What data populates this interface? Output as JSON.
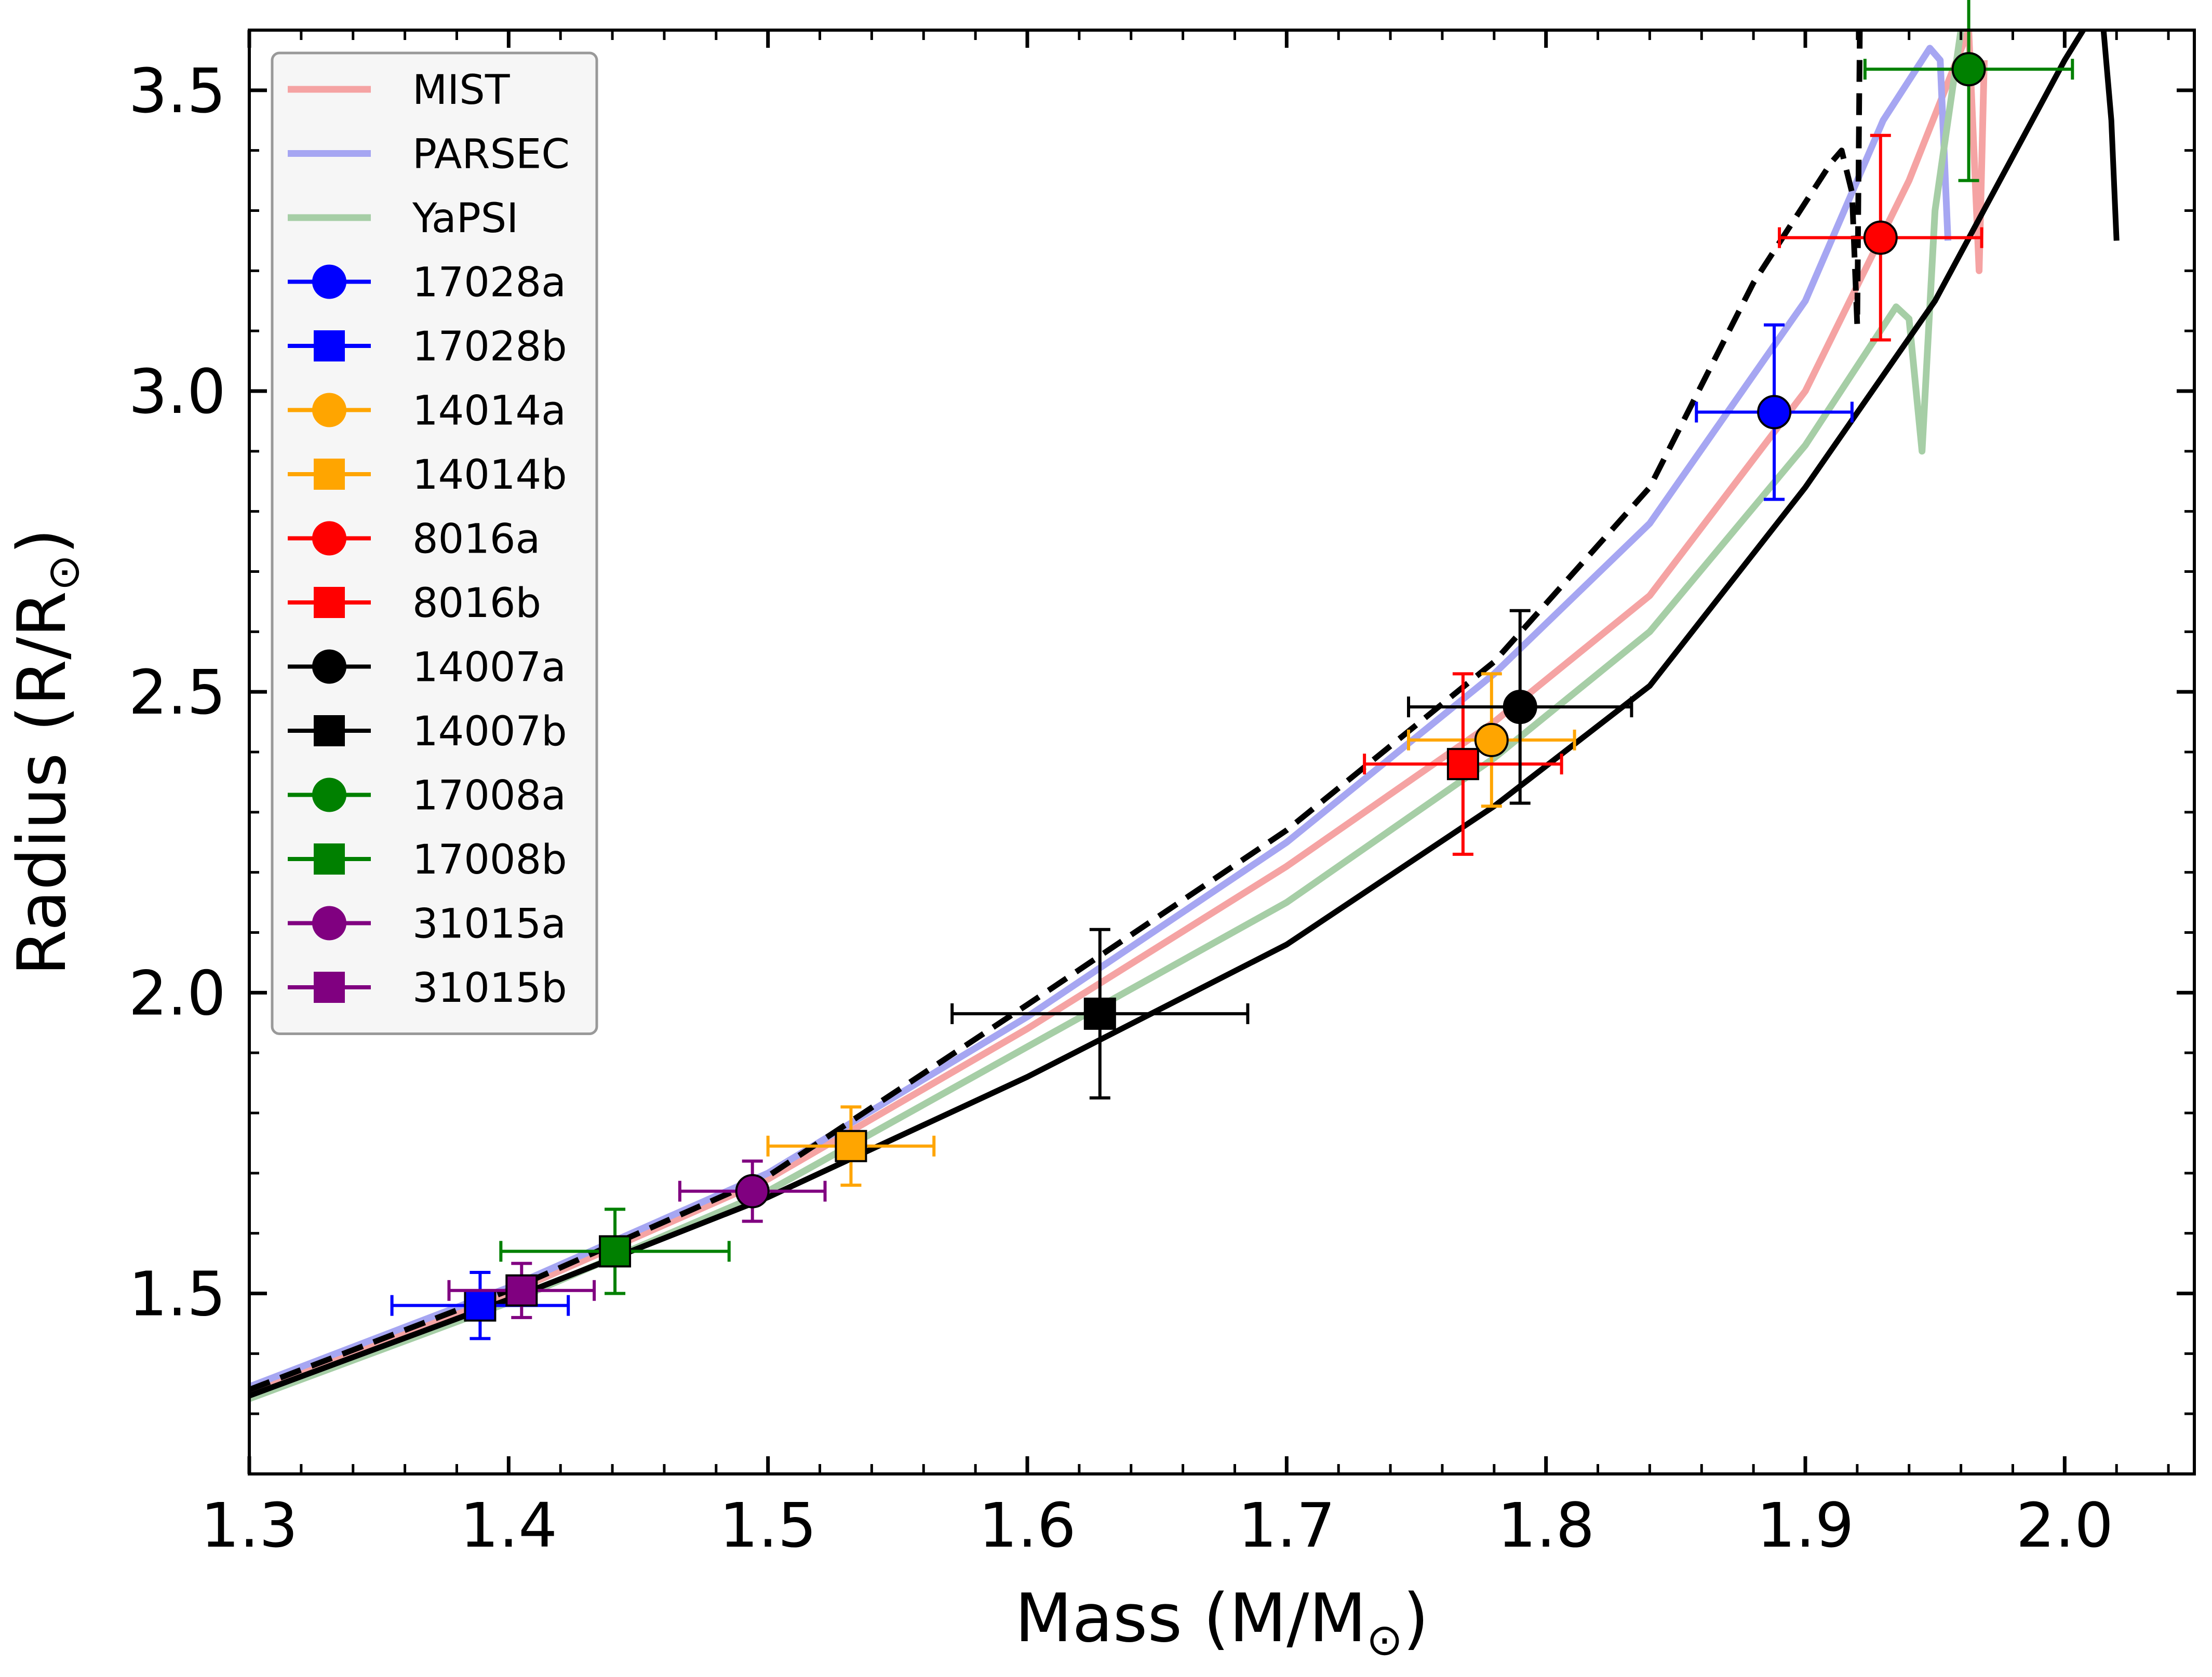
{
  "chart_data": {
    "type": "scatter",
    "title": "",
    "xlabel": "Mass (M/M",
    "ylabel": "Radius (R/R",
    "sun_symbol": "⊙",
    "xlim": [
      1.3,
      2.05
    ],
    "ylim": [
      1.2,
      3.6
    ],
    "x_ticks": [
      1.3,
      1.4,
      1.5,
      1.6,
      1.7,
      1.8,
      1.9,
      2.0
    ],
    "x_tick_labels": [
      "1.3",
      "1.4",
      "1.5",
      "1.6",
      "1.7",
      "1.8",
      "1.9",
      "2.0"
    ],
    "y_ticks": [
      1.5,
      2.0,
      2.5,
      3.0,
      3.5
    ],
    "y_tick_labels": [
      "1.5",
      "2.0",
      "2.5",
      "3.0",
      "3.5"
    ],
    "legend_position": "upper-left",
    "grid": false,
    "models": [
      {
        "name": "MIST",
        "color": "#f5a3a3",
        "points": [
          [
            1.3,
            1.34
          ],
          [
            1.4,
            1.5
          ],
          [
            1.5,
            1.69
          ],
          [
            1.6,
            1.94
          ],
          [
            1.7,
            2.21
          ],
          [
            1.78,
            2.45
          ],
          [
            1.84,
            2.66
          ],
          [
            1.9,
            3.0
          ],
          [
            1.94,
            3.35
          ],
          [
            1.963,
            3.6
          ],
          [
            1.965,
            3.4
          ],
          [
            1.967,
            3.2
          ],
          [
            1.969,
            3.55
          ]
        ]
      },
      {
        "name": "PARSEC",
        "color": "#a6a6f2",
        "points": [
          [
            1.3,
            1.345
          ],
          [
            1.4,
            1.51
          ],
          [
            1.5,
            1.7
          ],
          [
            1.6,
            1.96
          ],
          [
            1.7,
            2.25
          ],
          [
            1.78,
            2.53
          ],
          [
            1.84,
            2.78
          ],
          [
            1.9,
            3.15
          ],
          [
            1.93,
            3.45
          ],
          [
            1.948,
            3.57
          ],
          [
            1.952,
            3.55
          ],
          [
            1.955,
            3.25
          ]
        ]
      },
      {
        "name": "YaPSI",
        "color": "#a6cea6",
        "points": [
          [
            1.3,
            1.325
          ],
          [
            1.4,
            1.485
          ],
          [
            1.5,
            1.67
          ],
          [
            1.6,
            1.91
          ],
          [
            1.7,
            2.15
          ],
          [
            1.78,
            2.39
          ],
          [
            1.84,
            2.6
          ],
          [
            1.9,
            2.91
          ],
          [
            1.935,
            3.14
          ],
          [
            1.94,
            3.12
          ],
          [
            1.945,
            2.9
          ],
          [
            1.95,
            3.3
          ],
          [
            1.96,
            3.6
          ]
        ]
      }
    ],
    "black_curves": [
      {
        "name": "solid",
        "style": "solid",
        "color": "#000000",
        "points": [
          [
            1.3,
            1.33
          ],
          [
            1.4,
            1.49
          ],
          [
            1.5,
            1.66
          ],
          [
            1.6,
            1.86
          ],
          [
            1.7,
            2.08
          ],
          [
            1.78,
            2.31
          ],
          [
            1.84,
            2.51
          ],
          [
            1.9,
            2.84
          ],
          [
            1.95,
            3.15
          ],
          [
            2.0,
            3.55
          ],
          [
            2.01,
            3.62
          ],
          [
            2.015,
            3.6
          ],
          [
            2.018,
            3.45
          ],
          [
            2.02,
            3.25
          ]
        ]
      },
      {
        "name": "dashed",
        "style": "dashed",
        "color": "#000000",
        "points": [
          [
            1.3,
            1.34
          ],
          [
            1.4,
            1.505
          ],
          [
            1.5,
            1.695
          ],
          [
            1.6,
            1.98
          ],
          [
            1.7,
            2.27
          ],
          [
            1.78,
            2.55
          ],
          [
            1.84,
            2.84
          ],
          [
            1.88,
            3.18
          ],
          [
            1.91,
            3.38
          ],
          [
            1.914,
            3.4
          ],
          [
            1.918,
            3.33
          ],
          [
            1.92,
            3.11
          ],
          [
            1.921,
            3.6
          ]
        ]
      }
    ],
    "series": [
      {
        "name": "17028a",
        "marker": "circle",
        "color": "#0000ff",
        "x": 1.888,
        "y": 2.965,
        "xerr": 0.03,
        "yerr": 0.145
      },
      {
        "name": "17028b",
        "marker": "square",
        "color": "#0000ff",
        "x": 1.389,
        "y": 1.48,
        "xerr": 0.034,
        "yerr": 0.055
      },
      {
        "name": "14014a",
        "marker": "circle",
        "color": "#ffa500",
        "x": 1.779,
        "y": 2.42,
        "xerr": 0.032,
        "yerr": 0.11
      },
      {
        "name": "14014b",
        "marker": "square",
        "color": "#ffa500",
        "x": 1.532,
        "y": 1.745,
        "xerr": 0.032,
        "yerr": 0.065
      },
      {
        "name": "8016a",
        "marker": "circle",
        "color": "#ff0000",
        "x": 1.929,
        "y": 3.255,
        "xerr": 0.039,
        "yerr": 0.17
      },
      {
        "name": "8016b",
        "marker": "square",
        "color": "#ff0000",
        "x": 1.768,
        "y": 2.38,
        "xerr": 0.038,
        "yerr": 0.15
      },
      {
        "name": "14007a",
        "marker": "circle",
        "color": "#000000",
        "x": 1.79,
        "y": 2.475,
        "xerr": 0.043,
        "yerr": 0.16
      },
      {
        "name": "14007b",
        "marker": "square",
        "color": "#000000",
        "x": 1.628,
        "y": 1.965,
        "xerr": 0.057,
        "yerr": 0.14
      },
      {
        "name": "17008a",
        "marker": "circle",
        "color": "#008000",
        "x": 1.963,
        "y": 3.535,
        "xerr": 0.04,
        "yerr": 0.185
      },
      {
        "name": "17008b",
        "marker": "square",
        "color": "#008000",
        "x": 1.441,
        "y": 1.57,
        "xerr": 0.044,
        "yerr": 0.07
      },
      {
        "name": "31015a",
        "marker": "circle",
        "color": "#800080",
        "x": 1.494,
        "y": 1.67,
        "xerr": 0.028,
        "yerr": 0.05
      },
      {
        "name": "31015b",
        "marker": "square",
        "color": "#800080",
        "x": 1.405,
        "y": 1.505,
        "xerr": 0.028,
        "yerr": 0.045
      }
    ]
  }
}
